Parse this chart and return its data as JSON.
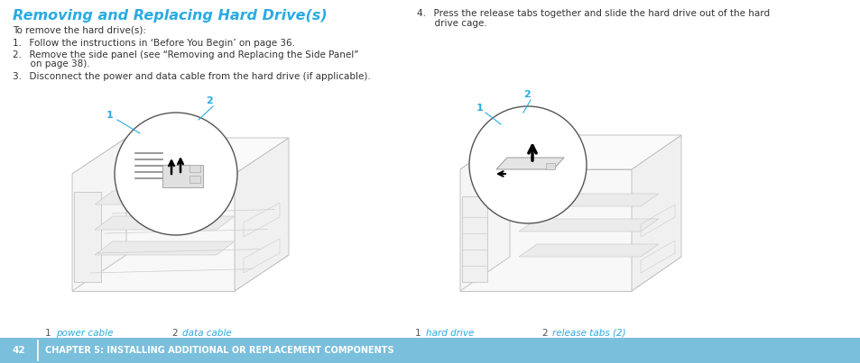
{
  "title": "Removing and Replacing Hard Drive(s)",
  "title_color": "#29ABE2",
  "title_fontsize": 11.5,
  "bg_color": "#FFFFFF",
  "intro_text": "To remove the hard drive(s):",
  "step1": "1.  Follow the instructions in ‘Before You Begin’ on page 36.",
  "step2a": "2.  Remove the side panel (see “Removing and Replacing the Side Panel”",
  "step2b": "      on page 38).",
  "step3": "3.  Disconnect the power and data cable from the hard drive (if applicable).",
  "step4a": "4.  Press the release tabs together and slide the hard drive out of the hard",
  "step4b": "      drive cage.",
  "caption_color": "#29ABE2",
  "caption_num_color": "#555555",
  "cap_left_1": "power cable",
  "cap_left_2": "data cable",
  "cap_right_1": "hard drive",
  "cap_right_2": "release tabs (2)",
  "footer_bg": "#7ABFDC",
  "footer_text_num": "42",
  "footer_text_body": "CHAPTER 5: INSTALLING ADDITIONAL OR REPLACEMENT COMPONENTS",
  "footer_color": "#FFFFFF",
  "footer_fontsize": 7.0,
  "text_fontsize": 7.5,
  "label_color": "#29ABE2",
  "line_color": "#CCCCCC",
  "dark_line": "#AAAAAA"
}
